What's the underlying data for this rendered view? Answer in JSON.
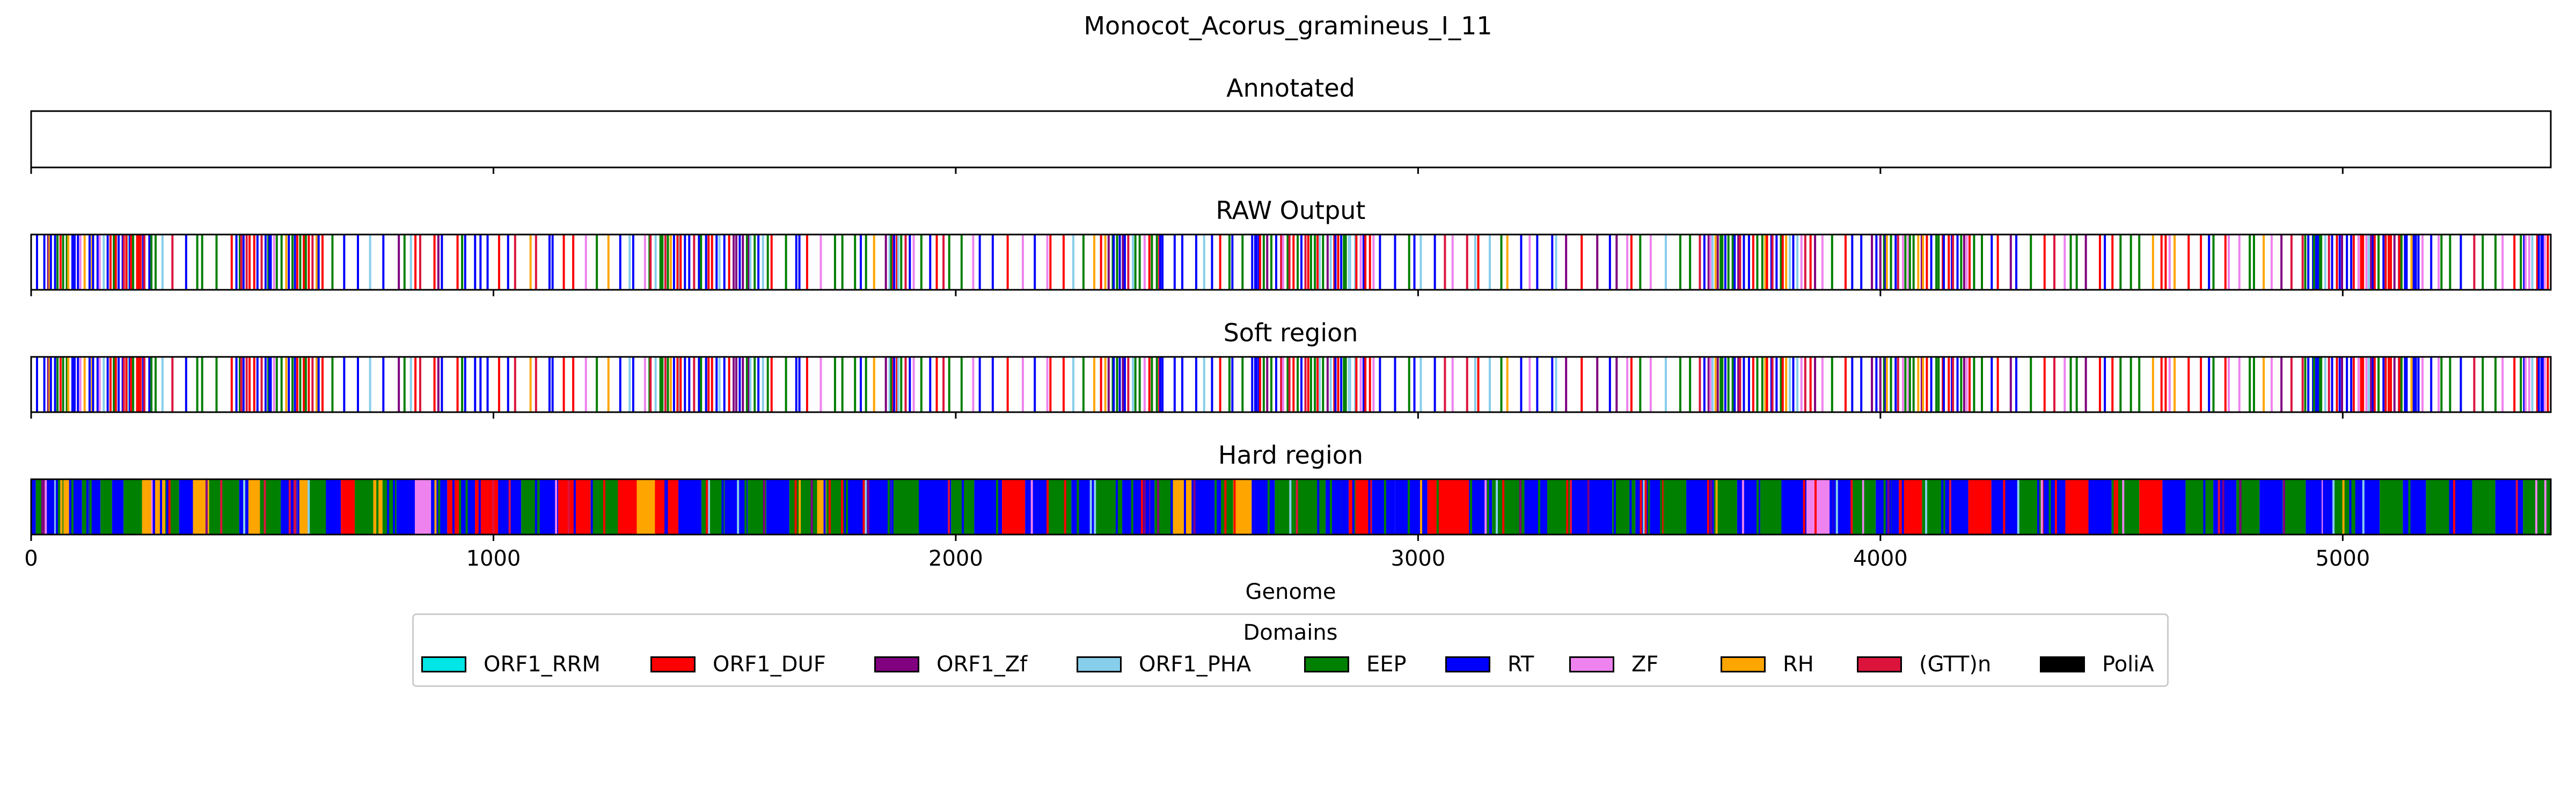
{
  "chart_data": {
    "type": "bar",
    "title": "Monocot_Acorus_gramineus_I_11",
    "xlabel": "Genome",
    "xlim": [
      0,
      5450
    ],
    "xticks": [
      0,
      1000,
      2000,
      3000,
      4000,
      5000
    ],
    "xtick_labels": [
      "0",
      "1000",
      "2000",
      "3000",
      "4000",
      "5000"
    ],
    "grid": false,
    "legend": {
      "title": "Domains",
      "placement": "bottom-center",
      "entries": [
        {
          "name": "ORF1_RRM",
          "color": "#00e5e5"
        },
        {
          "name": "ORF1_DUF",
          "color": "#ff0000"
        },
        {
          "name": "ORF1_Zf",
          "color": "#800080"
        },
        {
          "name": "ORF1_PHA",
          "color": "#87ceeb"
        },
        {
          "name": "EEP",
          "color": "#008000"
        },
        {
          "name": "RT",
          "color": "#0000ff"
        },
        {
          "name": "ZF",
          "color": "#ee82ee"
        },
        {
          "name": "RH",
          "color": "#ffa500"
        },
        {
          "name": "(GTT)n",
          "color": "#dc143c"
        },
        {
          "name": "PoliA",
          "color": "#000000"
        }
      ]
    },
    "tracks": [
      {
        "title": "Annotated",
        "mode": "empty",
        "segments": []
      },
      {
        "title": "RAW Output",
        "mode": "lines",
        "seed": 11
      },
      {
        "title": "Soft region",
        "mode": "lines",
        "seed": 11
      },
      {
        "title": "Hard region",
        "mode": "filled",
        "segments": [
          {
            "start": 0,
            "end": 10,
            "domain": "RT"
          },
          {
            "start": 10,
            "end": 22,
            "domain": "EEP"
          },
          {
            "start": 22,
            "end": 30,
            "domain": "ORF1_Zf"
          },
          {
            "start": 30,
            "end": 55,
            "domain": "RT"
          },
          {
            "start": 55,
            "end": 70,
            "domain": "EEP"
          },
          {
            "start": 70,
            "end": 82,
            "domain": "RH"
          },
          {
            "start": 82,
            "end": 110,
            "domain": "RT"
          },
          {
            "start": 110,
            "end": 125,
            "domain": "EEP"
          },
          {
            "start": 125,
            "end": 150,
            "domain": "RT"
          },
          {
            "start": 150,
            "end": 175,
            "domain": "EEP"
          },
          {
            "start": 175,
            "end": 200,
            "domain": "RT"
          },
          {
            "start": 200,
            "end": 240,
            "domain": "EEP"
          },
          {
            "start": 240,
            "end": 290,
            "domain": "RH"
          },
          {
            "start": 290,
            "end": 320,
            "domain": "EEP"
          },
          {
            "start": 320,
            "end": 350,
            "domain": "RT"
          },
          {
            "start": 350,
            "end": 385,
            "domain": "RH"
          },
          {
            "start": 385,
            "end": 450,
            "domain": "EEP"
          },
          {
            "start": 450,
            "end": 470,
            "domain": "RT"
          },
          {
            "start": 470,
            "end": 495,
            "domain": "RH"
          },
          {
            "start": 495,
            "end": 540,
            "domain": "EEP"
          },
          {
            "start": 540,
            "end": 575,
            "domain": "RT"
          },
          {
            "start": 575,
            "end": 600,
            "domain": "RH"
          },
          {
            "start": 600,
            "end": 640,
            "domain": "EEP"
          },
          {
            "start": 640,
            "end": 670,
            "domain": "RT"
          },
          {
            "start": 670,
            "end": 700,
            "domain": "ORF1_DUF"
          },
          {
            "start": 700,
            "end": 740,
            "domain": "EEP"
          },
          {
            "start": 740,
            "end": 760,
            "domain": "RH"
          },
          {
            "start": 760,
            "end": 790,
            "domain": "EEP"
          },
          {
            "start": 790,
            "end": 830,
            "domain": "RT"
          },
          {
            "start": 830,
            "end": 865,
            "domain": "ZF"
          },
          {
            "start": 865,
            "end": 900,
            "domain": "RT"
          },
          {
            "start": 900,
            "end": 930,
            "domain": "ORF1_DUF"
          },
          {
            "start": 930,
            "end": 960,
            "domain": "RT"
          },
          {
            "start": 960,
            "end": 1010,
            "domain": "ORF1_DUF"
          },
          {
            "start": 1010,
            "end": 1060,
            "domain": "RT"
          },
          {
            "start": 1060,
            "end": 1100,
            "domain": "EEP"
          },
          {
            "start": 1100,
            "end": 1140,
            "domain": "RT"
          },
          {
            "start": 1140,
            "end": 1210,
            "domain": "ORF1_DUF"
          },
          {
            "start": 1210,
            "end": 1270,
            "domain": "EEP"
          },
          {
            "start": 1270,
            "end": 1310,
            "domain": "ORF1_DUF"
          },
          {
            "start": 1310,
            "end": 1350,
            "domain": "RH"
          },
          {
            "start": 1350,
            "end": 1400,
            "domain": "ORF1_DUF"
          },
          {
            "start": 1400,
            "end": 1450,
            "domain": "RT"
          },
          {
            "start": 1450,
            "end": 1500,
            "domain": "EEP"
          },
          {
            "start": 1500,
            "end": 1550,
            "domain": "RT"
          },
          {
            "start": 1550,
            "end": 1590,
            "domain": "EEP"
          },
          {
            "start": 1590,
            "end": 1640,
            "domain": "RT"
          },
          {
            "start": 1640,
            "end": 1700,
            "domain": "EEP"
          },
          {
            "start": 1700,
            "end": 1720,
            "domain": "RH"
          },
          {
            "start": 1720,
            "end": 1760,
            "domain": "EEP"
          },
          {
            "start": 1760,
            "end": 1810,
            "domain": "RT"
          },
          {
            "start": 1810,
            "end": 1860,
            "domain": "RT"
          },
          {
            "start": 1860,
            "end": 1920,
            "domain": "EEP"
          },
          {
            "start": 1920,
            "end": 1990,
            "domain": "RT"
          },
          {
            "start": 1990,
            "end": 2040,
            "domain": "EEP"
          },
          {
            "start": 2040,
            "end": 2100,
            "domain": "RT"
          },
          {
            "start": 2100,
            "end": 2150,
            "domain": "ORF1_DUF"
          },
          {
            "start": 2150,
            "end": 2200,
            "domain": "RT"
          },
          {
            "start": 2200,
            "end": 2250,
            "domain": "EEP"
          },
          {
            "start": 2250,
            "end": 2300,
            "domain": "RT"
          },
          {
            "start": 2300,
            "end": 2360,
            "domain": "EEP"
          },
          {
            "start": 2360,
            "end": 2430,
            "domain": "RT"
          },
          {
            "start": 2430,
            "end": 2470,
            "domain": "EEP"
          },
          {
            "start": 2470,
            "end": 2510,
            "domain": "RH"
          },
          {
            "start": 2510,
            "end": 2560,
            "domain": "RT"
          },
          {
            "start": 2560,
            "end": 2600,
            "domain": "EEP"
          },
          {
            "start": 2600,
            "end": 2640,
            "domain": "RH"
          },
          {
            "start": 2640,
            "end": 2690,
            "domain": "RT"
          },
          {
            "start": 2690,
            "end": 2730,
            "domain": "EEP"
          },
          {
            "start": 2730,
            "end": 2800,
            "domain": "EEP"
          },
          {
            "start": 2800,
            "end": 2850,
            "domain": "RT"
          },
          {
            "start": 2850,
            "end": 2900,
            "domain": "ORF1_DUF"
          },
          {
            "start": 2900,
            "end": 2950,
            "domain": "RT"
          },
          {
            "start": 2950,
            "end": 3020,
            "domain": "RT"
          },
          {
            "start": 3020,
            "end": 3110,
            "domain": "ORF1_DUF"
          },
          {
            "start": 3110,
            "end": 3160,
            "domain": "RT"
          },
          {
            "start": 3160,
            "end": 3230,
            "domain": "EEP"
          },
          {
            "start": 3230,
            "end": 3280,
            "domain": "RT"
          },
          {
            "start": 3280,
            "end": 3330,
            "domain": "EEP"
          },
          {
            "start": 3330,
            "end": 3420,
            "domain": "RT"
          },
          {
            "start": 3420,
            "end": 3470,
            "domain": "EEP"
          },
          {
            "start": 3470,
            "end": 3530,
            "domain": "RT"
          },
          {
            "start": 3530,
            "end": 3580,
            "domain": "EEP"
          },
          {
            "start": 3580,
            "end": 3640,
            "domain": "RT"
          },
          {
            "start": 3640,
            "end": 3690,
            "domain": "EEP"
          },
          {
            "start": 3690,
            "end": 3740,
            "domain": "RT"
          },
          {
            "start": 3740,
            "end": 3790,
            "domain": "EEP"
          },
          {
            "start": 3790,
            "end": 3840,
            "domain": "RT"
          },
          {
            "start": 3840,
            "end": 3890,
            "domain": "ZF"
          },
          {
            "start": 3890,
            "end": 3940,
            "domain": "RT"
          },
          {
            "start": 3940,
            "end": 3990,
            "domain": "EEP"
          },
          {
            "start": 3990,
            "end": 4040,
            "domain": "RT"
          },
          {
            "start": 4040,
            "end": 4090,
            "domain": "ORF1_DUF"
          },
          {
            "start": 4090,
            "end": 4140,
            "domain": "EEP"
          },
          {
            "start": 4140,
            "end": 4190,
            "domain": "RT"
          },
          {
            "start": 4190,
            "end": 4240,
            "domain": "ORF1_DUF"
          },
          {
            "start": 4240,
            "end": 4300,
            "domain": "RT"
          },
          {
            "start": 4300,
            "end": 4350,
            "domain": "EEP"
          },
          {
            "start": 4350,
            "end": 4400,
            "domain": "RT"
          },
          {
            "start": 4400,
            "end": 4450,
            "domain": "ORF1_DUF"
          },
          {
            "start": 4450,
            "end": 4500,
            "domain": "RT"
          },
          {
            "start": 4500,
            "end": 4560,
            "domain": "EEP"
          },
          {
            "start": 4560,
            "end": 4610,
            "domain": "ORF1_DUF"
          },
          {
            "start": 4610,
            "end": 4660,
            "domain": "RT"
          },
          {
            "start": 4660,
            "end": 4720,
            "domain": "EEP"
          },
          {
            "start": 4720,
            "end": 4770,
            "domain": "RT"
          },
          {
            "start": 4770,
            "end": 4820,
            "domain": "EEP"
          },
          {
            "start": 4820,
            "end": 4870,
            "domain": "RT"
          },
          {
            "start": 4870,
            "end": 4920,
            "domain": "EEP"
          },
          {
            "start": 4920,
            "end": 4980,
            "domain": "RT"
          },
          {
            "start": 4980,
            "end": 5030,
            "domain": "EEP"
          },
          {
            "start": 5030,
            "end": 5080,
            "domain": "RT"
          },
          {
            "start": 5080,
            "end": 5130,
            "domain": "EEP"
          },
          {
            "start": 5130,
            "end": 5180,
            "domain": "RT"
          },
          {
            "start": 5180,
            "end": 5230,
            "domain": "EEP"
          },
          {
            "start": 5230,
            "end": 5280,
            "domain": "RT"
          },
          {
            "start": 5280,
            "end": 5330,
            "domain": "EEP"
          },
          {
            "start": 5330,
            "end": 5390,
            "domain": "RT"
          },
          {
            "start": 5390,
            "end": 5450,
            "domain": "EEP"
          }
        ]
      }
    ]
  }
}
